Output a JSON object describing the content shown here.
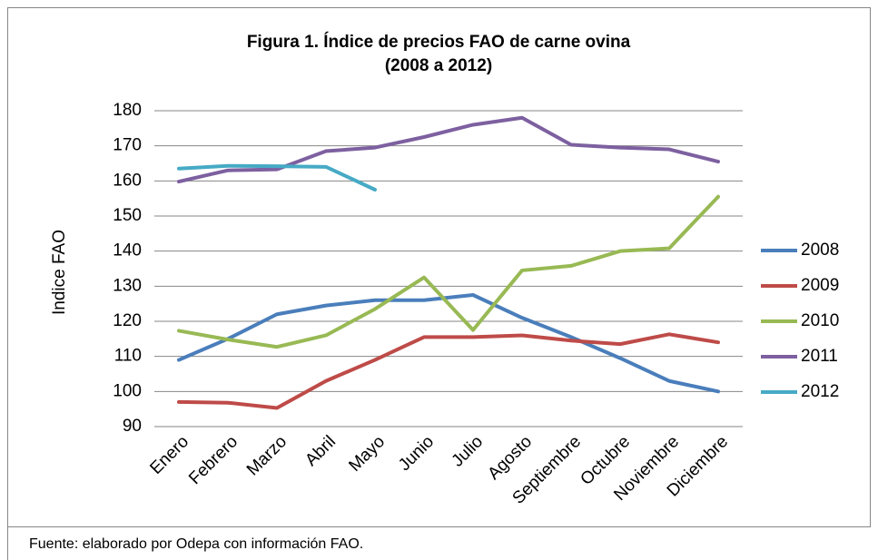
{
  "chart_data": {
    "type": "line",
    "title": "Figura 1. Índice de precios FAO de carne ovina",
    "subtitle": "(2008 a 2012)",
    "y_label": "Indice FAO",
    "source": "Fuente: elaborado por Odepa con información FAO.",
    "categories": [
      "Enero",
      "Febrero",
      "Marzo",
      "Abril",
      "Mayo",
      "Junio",
      "Julio",
      "Agosto",
      "Septiembre",
      "Octubre",
      "Noviembre",
      "Diciembre"
    ],
    "series": [
      {
        "name": "2008",
        "color": "#4a7ebb",
        "values": [
          109,
          115,
          122,
          124.5,
          126,
          126,
          127.5,
          121,
          115.5,
          109.5,
          103,
          100
        ]
      },
      {
        "name": "2009",
        "color": "#be4b48",
        "values": [
          97,
          96.8,
          95.3,
          103,
          109,
          115.5,
          115.5,
          116,
          114.5,
          113.5,
          116.3,
          114
        ]
      },
      {
        "name": "2010",
        "color": "#98b954",
        "values": [
          117.3,
          114.8,
          112.7,
          116,
          123.5,
          132.5,
          117.5,
          134.5,
          135.8,
          140,
          140.8,
          155.5
        ]
      },
      {
        "name": "2011",
        "color": "#7d60a0",
        "values": [
          159.8,
          163,
          163.3,
          168.5,
          169.5,
          172.5,
          176,
          178,
          170.3,
          169.5,
          169,
          165.5
        ]
      },
      {
        "name": "2012",
        "color": "#46aac5",
        "values": [
          163.5,
          164.3,
          164.2,
          164,
          157.5,
          null,
          null,
          null,
          null,
          null,
          null,
          null
        ]
      }
    ],
    "ylim": [
      90,
      180
    ],
    "yticks": [
      90,
      100,
      110,
      120,
      130,
      140,
      150,
      160,
      170,
      180
    ],
    "grid": true,
    "legend": "right"
  }
}
